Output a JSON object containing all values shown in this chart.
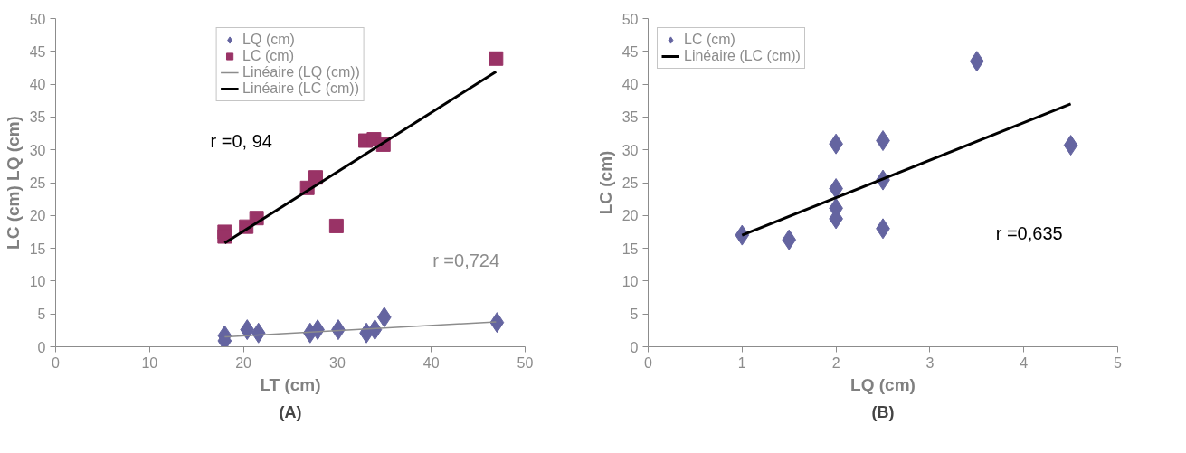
{
  "chart_data": [
    {
      "type": "scatter",
      "title": "(A)",
      "xlabel": "LT (cm)",
      "ylabel": "LC (cm) LQ (cm)",
      "xlim": [
        0,
        50
      ],
      "ylim": [
        0,
        50
      ],
      "xticks": [
        0,
        10,
        20,
        30,
        40,
        50
      ],
      "yticks": [
        0,
        5,
        10,
        15,
        20,
        25,
        30,
        35,
        40,
        45,
        50
      ],
      "grid": false,
      "legend": "top",
      "series": [
        {
          "name": "LQ (cm)",
          "marker": "diamond",
          "color": "#6464a0",
          "x": [
            18,
            18,
            20.4,
            21.6,
            27.1,
            27.9,
            30.1,
            33.1,
            34,
            35,
            47
          ],
          "values": [
            1.7,
            0.9,
            2.6,
            2.1,
            2.1,
            2.6,
            2.6,
            2.1,
            2.6,
            4.5,
            3.7
          ]
        },
        {
          "name": "LC (cm)",
          "marker": "square",
          "color": "#993366",
          "x": [
            18,
            18,
            20.3,
            21.4,
            26.8,
            27.7,
            29.9,
            33,
            33.9,
            34.9,
            46.9
          ],
          "values": [
            17.5,
            16.8,
            18.3,
            19.6,
            24.2,
            25.8,
            18.4,
            31.4,
            31.6,
            30.8,
            43.9
          ]
        },
        {
          "name": "Linéaire (LQ (cm))",
          "type": "line",
          "line_style": "solid",
          "color": "#8c8c8c",
          "x": [
            18,
            46.9
          ],
          "values": [
            1.5,
            3.8
          ]
        },
        {
          "name": "Linéaire (LC (cm))",
          "type": "line",
          "line_style": "solid",
          "color": "#000000",
          "x": [
            18,
            46.9
          ],
          "values": [
            15.8,
            41.9
          ]
        }
      ],
      "annotations": [
        "r =0, 94",
        "r =0,724"
      ]
    },
    {
      "type": "scatter",
      "title": "(B)",
      "xlabel": "LQ (cm)",
      "ylabel": "LC (cm)",
      "xlim": [
        0,
        5
      ],
      "ylim": [
        0,
        50
      ],
      "xticks": [
        0,
        1,
        2,
        3,
        4,
        5
      ],
      "yticks": [
        0,
        5,
        10,
        15,
        20,
        25,
        30,
        35,
        40,
        45,
        50
      ],
      "grid": false,
      "legend": "top left",
      "series": [
        {
          "name": "LC (cm)",
          "marker": "diamond",
          "color": "#6464a0",
          "x": [
            1,
            1.5,
            2,
            2,
            2,
            2,
            2.5,
            2.5,
            2.5,
            3.5,
            4.5
          ],
          "values": [
            17.0,
            16.3,
            30.9,
            24.1,
            21.1,
            19.5,
            31.4,
            25.4,
            18.0,
            43.5,
            30.7
          ]
        },
        {
          "name": "Linéaire (LC (cm))",
          "type": "line",
          "line_style": "solid",
          "color": "#000000",
          "x": [
            1,
            4.5
          ],
          "values": [
            17.0,
            37.0
          ]
        }
      ],
      "annotations": [
        "r =0,635"
      ]
    }
  ]
}
